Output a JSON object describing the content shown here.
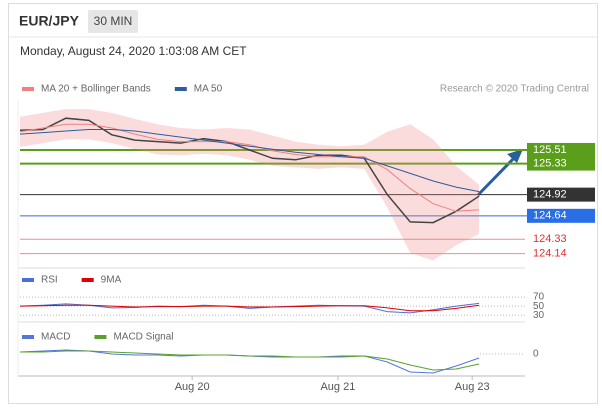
{
  "chart_data": [
    {
      "type": "line",
      "title": "EUR/JPY",
      "timeframe": "30 MIN",
      "subtitle": "Monday, August 24, 2020 1:03:08 AM CET",
      "source": "Research © 2020 Trading Central",
      "x": [
        0,
        2,
        4,
        6,
        8,
        10,
        12,
        14,
        16,
        18,
        20,
        22,
        24,
        26,
        28,
        30,
        32,
        34,
        36,
        38,
        40
      ],
      "xlim": [
        0,
        44
      ],
      "ylim": [
        124.03,
        126.17
      ],
      "series": [
        {
          "color": "#444444",
          "values": [
            125.77,
            125.78,
            125.93,
            125.9,
            125.71,
            125.64,
            125.62,
            125.6,
            125.66,
            125.62,
            125.51,
            125.4,
            125.38,
            125.44,
            125.44,
            125.4,
            124.92,
            124.56,
            124.55,
            124.7,
            124.9
          ]
        },
        {
          "name": "MA 20 + Bollinger Bands",
          "color": "#f08080",
          "values": [
            125.75,
            125.8,
            125.85,
            125.85,
            125.8,
            125.72,
            125.65,
            125.62,
            125.62,
            125.62,
            125.58,
            125.5,
            125.45,
            125.42,
            125.42,
            125.42,
            125.25,
            125.0,
            124.8,
            124.7,
            124.72
          ],
          "band_upper": [
            125.95,
            126.0,
            126.05,
            126.05,
            126.0,
            125.92,
            125.85,
            125.8,
            125.78,
            125.8,
            125.78,
            125.7,
            125.62,
            125.58,
            125.56,
            125.58,
            125.75,
            125.85,
            125.65,
            125.3,
            125.05
          ],
          "band_lower": [
            125.55,
            125.6,
            125.65,
            125.65,
            125.6,
            125.52,
            125.45,
            125.44,
            125.46,
            125.44,
            125.38,
            125.3,
            125.28,
            125.26,
            125.28,
            125.26,
            124.75,
            124.15,
            124.05,
            124.25,
            124.4
          ]
        },
        {
          "name": "MA 50",
          "color": "#2e5c9e",
          "values": [
            125.72,
            125.74,
            125.76,
            125.78,
            125.78,
            125.76,
            125.72,
            125.68,
            125.64,
            125.6,
            125.56,
            125.52,
            125.48,
            125.45,
            125.42,
            125.4,
            125.3,
            125.2,
            125.1,
            125.02,
            124.96
          ]
        }
      ],
      "levels": [
        {
          "value": 125.51,
          "color": "#5a9e1b",
          "box": true
        },
        {
          "value": 125.33,
          "color": "#5a9e1b",
          "box": true
        },
        {
          "value": 124.92,
          "color": "#333333",
          "box": true
        },
        {
          "value": 124.64,
          "color": "#2a6ee6",
          "box": true
        },
        {
          "value": 124.33,
          "color": "#e03030",
          "box": false
        },
        {
          "value": 124.14,
          "color": "#e03030",
          "box": false
        }
      ]
    },
    {
      "type": "line",
      "x": [
        0,
        2,
        4,
        6,
        8,
        10,
        12,
        14,
        16,
        18,
        20,
        22,
        24,
        26,
        28,
        30,
        32,
        34,
        36,
        38,
        40
      ],
      "xlim": [
        0,
        44
      ],
      "ylim": [
        15,
        90
      ],
      "yticks": [
        70,
        50,
        30
      ],
      "grid": true,
      "series": [
        {
          "name": "RSI",
          "color": "#4a6fd6",
          "values": [
            50,
            52,
            55,
            52,
            46,
            47,
            50,
            49,
            52,
            50,
            45,
            48,
            50,
            52,
            51,
            50,
            38,
            35,
            42,
            50,
            56
          ]
        },
        {
          "name": "9MA",
          "color": "#e00000",
          "values": [
            50,
            51,
            52,
            52,
            50,
            48,
            49,
            49,
            50,
            50,
            48,
            48,
            49,
            50,
            51,
            51,
            46,
            40,
            40,
            45,
            52
          ]
        }
      ]
    },
    {
      "type": "line",
      "x": [
        0,
        2,
        4,
        6,
        8,
        10,
        12,
        14,
        16,
        18,
        20,
        22,
        24,
        26,
        28,
        30,
        32,
        34,
        36,
        38,
        40
      ],
      "xlim": [
        0,
        44
      ],
      "ylim": [
        -0.24,
        0.11
      ],
      "yticks": [
        0
      ],
      "grid": false,
      "xticks": [
        {
          "value": 15,
          "label": "Aug 20"
        },
        {
          "value": 27.7,
          "label": "Aug 21"
        },
        {
          "value": 39.4,
          "label": "Aug 23"
        }
      ],
      "series": [
        {
          "name": "MACD",
          "color": "#5577dd",
          "values": [
            0.02,
            0.03,
            0.04,
            0.03,
            0,
            -0.01,
            -0.01,
            -0.02,
            -0.01,
            -0.01,
            -0.02,
            -0.03,
            -0.03,
            -0.03,
            -0.02,
            -0.02,
            -0.08,
            -0.18,
            -0.19,
            -0.12,
            -0.04
          ]
        },
        {
          "name": "MACD Signal",
          "color": "#5aa02c",
          "values": [
            0.02,
            0.02,
            0.03,
            0.03,
            0.02,
            0.01,
            0,
            -0.01,
            -0.01,
            -0.01,
            -0.02,
            -0.02,
            -0.03,
            -0.03,
            -0.03,
            -0.02,
            -0.05,
            -0.11,
            -0.16,
            -0.15,
            -0.1
          ]
        }
      ]
    }
  ]
}
